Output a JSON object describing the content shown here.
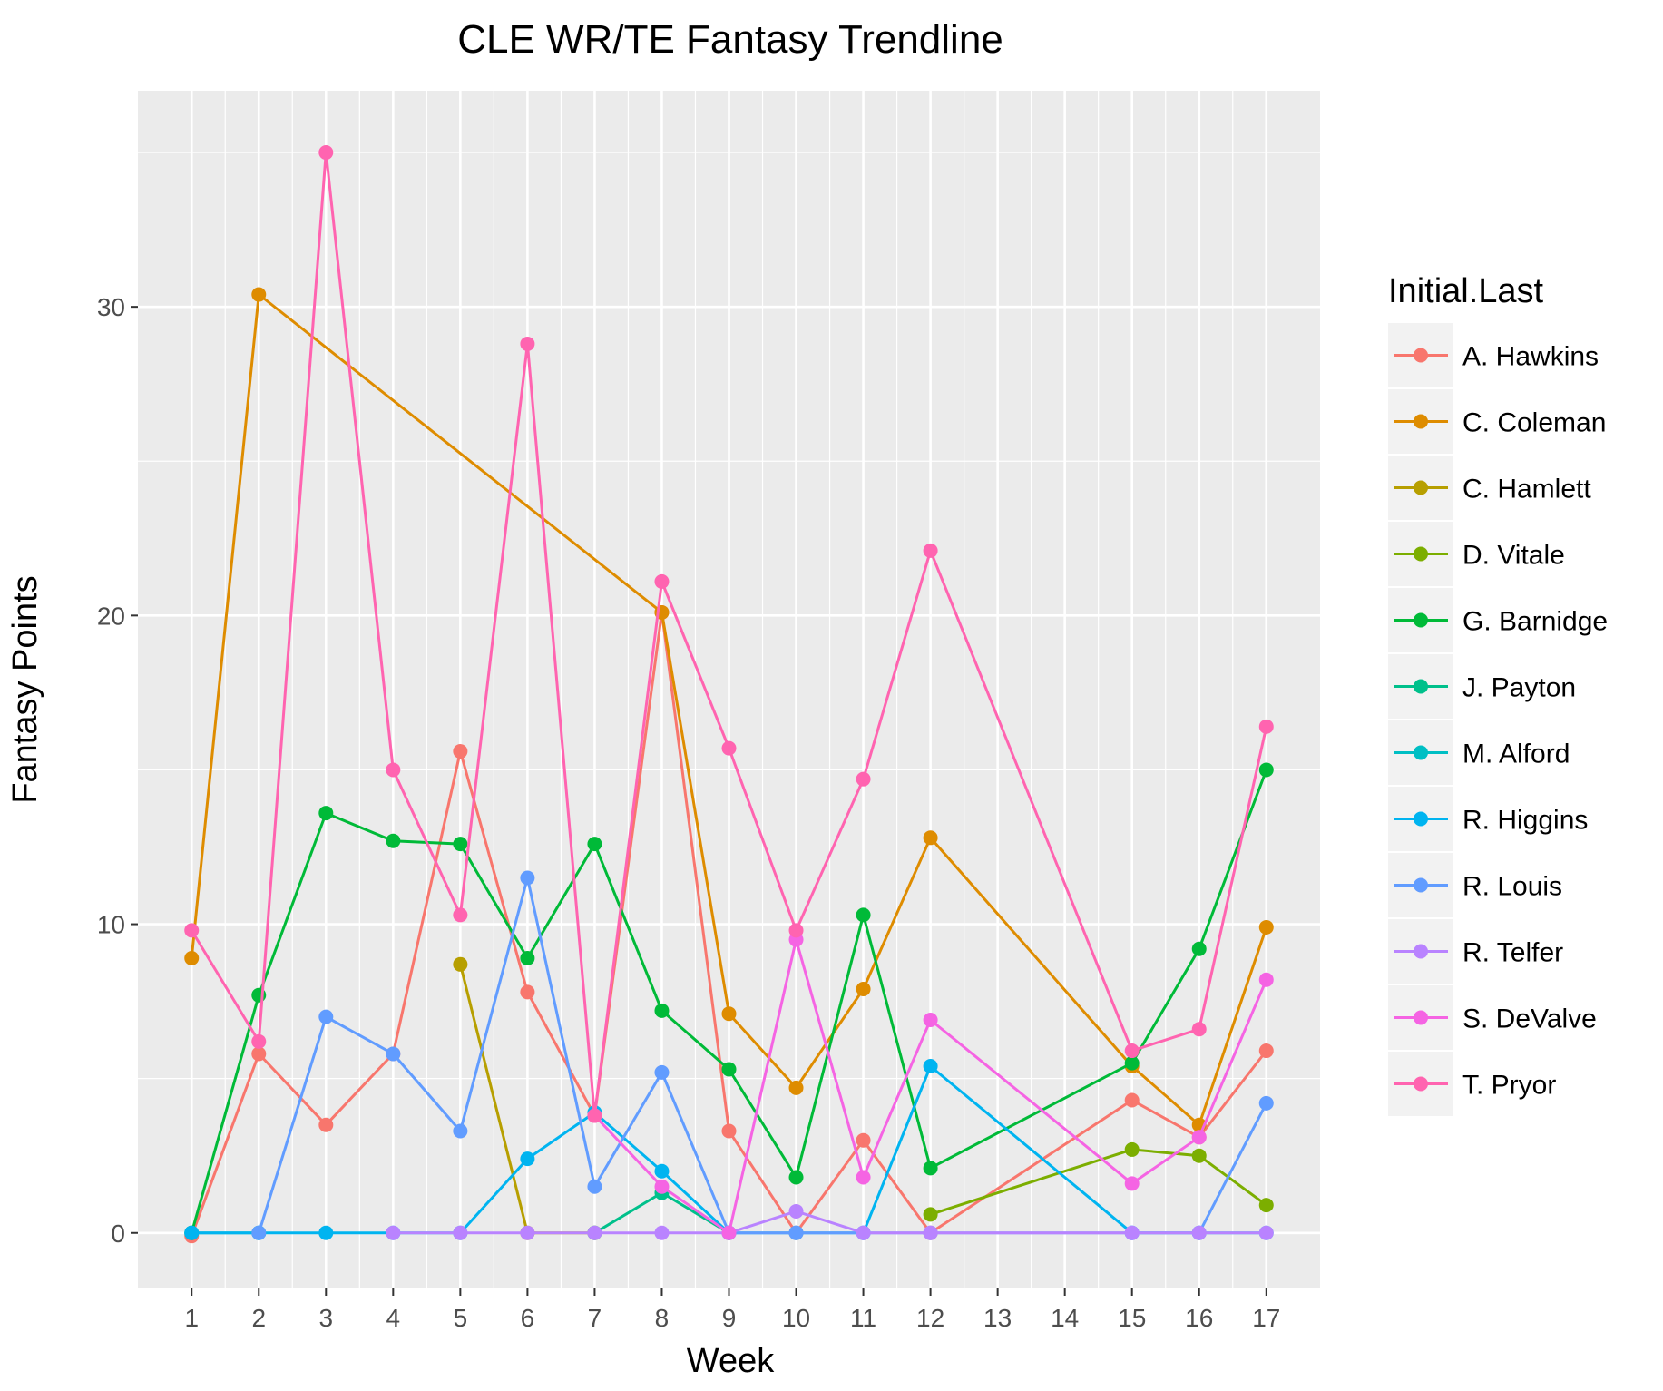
{
  "chart_data": {
    "type": "line",
    "title": "CLE WR/TE Fantasy Trendline",
    "xlabel": "Week",
    "ylabel": "Fantasy Points",
    "x": [
      1,
      2,
      3,
      4,
      5,
      6,
      7,
      8,
      9,
      10,
      11,
      12,
      13,
      14,
      15,
      16,
      17
    ],
    "x_tick_labels": [
      "1",
      "2",
      "3",
      "4",
      "5",
      "6",
      "7",
      "8",
      "9",
      "10",
      "11",
      "12",
      "13",
      "14",
      "15",
      "16",
      "17"
    ],
    "y_ticks": [
      0,
      10,
      20,
      30
    ],
    "ylim": [
      -1.8,
      37.0
    ],
    "xlim": [
      0.2,
      17.8
    ],
    "grid": true,
    "legend_title": "Initial.Last",
    "legend_position": "right",
    "series": [
      {
        "name": "A. Hawkins",
        "color": "#F8766D",
        "points": [
          [
            1,
            -0.1
          ],
          [
            2,
            5.8
          ],
          [
            3,
            3.5
          ],
          [
            4,
            5.8
          ],
          [
            5,
            15.6
          ],
          [
            6,
            7.8
          ],
          [
            7,
            3.8
          ],
          [
            8,
            20.1
          ],
          [
            9,
            3.3
          ],
          [
            10,
            0
          ],
          [
            11,
            3.0
          ],
          [
            12,
            0
          ],
          [
            15,
            4.3
          ],
          [
            16,
            3.1
          ],
          [
            17,
            5.9
          ]
        ]
      },
      {
        "name": "C. Coleman",
        "color": "#DE8C00",
        "points": [
          [
            1,
            8.9
          ],
          [
            2,
            30.4
          ],
          [
            8,
            20.1
          ],
          [
            9,
            7.1
          ],
          [
            10,
            4.7
          ],
          [
            11,
            7.9
          ],
          [
            12,
            12.8
          ],
          [
            15,
            5.4
          ],
          [
            16,
            3.5
          ],
          [
            17,
            9.9
          ]
        ]
      },
      {
        "name": "C. Hamlett",
        "color": "#B79F00",
        "points": [
          [
            5,
            8.7
          ],
          [
            6,
            0
          ],
          [
            7,
            0
          ]
        ]
      },
      {
        "name": "D. Vitale",
        "color": "#7CAE00",
        "points": [
          [
            12,
            0.6
          ],
          [
            15,
            2.7
          ],
          [
            16,
            2.5
          ],
          [
            17,
            0.9
          ]
        ]
      },
      {
        "name": "G. Barnidge",
        "color": "#00BA38",
        "points": [
          [
            1,
            0
          ],
          [
            2,
            7.7
          ],
          [
            3,
            13.6
          ],
          [
            4,
            12.7
          ],
          [
            5,
            12.6
          ],
          [
            6,
            8.9
          ],
          [
            7,
            12.6
          ],
          [
            8,
            7.2
          ],
          [
            9,
            5.3
          ],
          [
            10,
            1.8
          ],
          [
            11,
            10.3
          ],
          [
            12,
            2.1
          ],
          [
            15,
            5.5
          ],
          [
            16,
            9.2
          ],
          [
            17,
            15.0
          ]
        ]
      },
      {
        "name": "J. Payton",
        "color": "#00C08B",
        "points": [
          [
            7,
            0
          ],
          [
            8,
            1.3
          ],
          [
            9,
            0
          ]
        ]
      },
      {
        "name": "M. Alford",
        "color": "#00BFC4",
        "points": [
          [
            1,
            0
          ],
          [
            2,
            0
          ]
        ]
      },
      {
        "name": "R. Higgins",
        "color": "#00B4F0",
        "points": [
          [
            1,
            0
          ],
          [
            2,
            0
          ],
          [
            3,
            0
          ],
          [
            4,
            0
          ],
          [
            5,
            0
          ],
          [
            6,
            2.4
          ],
          [
            7,
            3.9
          ],
          [
            8,
            2.0
          ],
          [
            9,
            0
          ],
          [
            10,
            0
          ],
          [
            11,
            0
          ],
          [
            12,
            5.4
          ],
          [
            15,
            0
          ],
          [
            16,
            0
          ],
          [
            17,
            0
          ]
        ]
      },
      {
        "name": "R. Louis",
        "color": "#619CFF",
        "points": [
          [
            2,
            0
          ],
          [
            3,
            7.0
          ],
          [
            4,
            5.8
          ],
          [
            5,
            3.3
          ],
          [
            6,
            11.5
          ],
          [
            7,
            1.5
          ],
          [
            8,
            5.2
          ],
          [
            9,
            0
          ],
          [
            10,
            0
          ],
          [
            11,
            0
          ],
          [
            12,
            0
          ],
          [
            15,
            0
          ],
          [
            16,
            0
          ],
          [
            17,
            4.2
          ]
        ]
      },
      {
        "name": "R. Telfer",
        "color": "#B983FF",
        "points": [
          [
            4,
            0
          ],
          [
            5,
            0
          ],
          [
            6,
            0
          ],
          [
            7,
            0
          ],
          [
            8,
            0
          ],
          [
            9,
            0
          ],
          [
            10,
            0.7
          ],
          [
            11,
            0
          ],
          [
            12,
            0
          ],
          [
            15,
            0
          ],
          [
            16,
            0
          ],
          [
            17,
            0
          ]
        ]
      },
      {
        "name": "S. DeValve",
        "color": "#F564E3",
        "points": [
          [
            7,
            3.8
          ],
          [
            8,
            1.5
          ],
          [
            9,
            0
          ],
          [
            10,
            9.5
          ],
          [
            11,
            1.8
          ],
          [
            12,
            6.9
          ],
          [
            15,
            1.6
          ],
          [
            16,
            3.1
          ],
          [
            17,
            8.2
          ]
        ]
      },
      {
        "name": "T. Pryor",
        "color": "#FF64B0",
        "points": [
          [
            1,
            9.8
          ],
          [
            2,
            6.2
          ],
          [
            3,
            35.0
          ],
          [
            4,
            15.0
          ],
          [
            5,
            10.3
          ],
          [
            6,
            28.8
          ],
          [
            7,
            3.8
          ],
          [
            8,
            21.1
          ],
          [
            9,
            15.7
          ],
          [
            10,
            9.8
          ],
          [
            11,
            14.7
          ],
          [
            12,
            22.1
          ],
          [
            15,
            5.9
          ],
          [
            16,
            6.6
          ],
          [
            17,
            16.4
          ]
        ]
      }
    ]
  }
}
